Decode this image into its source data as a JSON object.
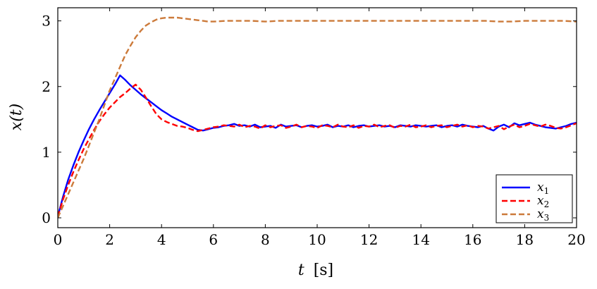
{
  "chart_data": {
    "type": "line",
    "xlabel_var": "t",
    "xlabel_unit": "[s]",
    "ylabel": "x(t)",
    "xlim": [
      0,
      20
    ],
    "ylim": [
      -0.15,
      3.2
    ],
    "xticks": [
      0,
      2,
      4,
      6,
      8,
      10,
      12,
      14,
      16,
      18,
      20
    ],
    "yticks": [
      0,
      1,
      2,
      3
    ],
    "grid": false,
    "legend_position": "bottom-right",
    "series": [
      {
        "name": "x1",
        "color": "#0000ff",
        "style": "solid",
        "x": [
          0,
          0.2,
          0.4,
          0.6,
          0.8,
          1.0,
          1.2,
          1.4,
          1.6,
          1.8,
          2.0,
          2.2,
          2.4,
          2.6,
          2.8,
          3.0,
          3.2,
          3.4,
          3.6,
          3.8,
          4.0,
          4.2,
          4.4,
          4.6,
          4.8,
          5.0,
          5.2,
          5.4,
          5.6,
          5.8,
          6.0,
          6.2,
          6.4,
          6.6,
          6.8,
          7.0,
          7.2,
          7.4,
          7.6,
          7.8,
          8.0,
          8.2,
          8.4,
          8.6,
          8.8,
          9.0,
          9.2,
          9.4,
          9.6,
          9.8,
          10.0,
          10.2,
          10.4,
          10.6,
          10.8,
          11.0,
          11.2,
          11.4,
          11.6,
          11.8,
          12.0,
          12.2,
          12.4,
          12.6,
          12.8,
          13.0,
          13.2,
          13.4,
          13.6,
          13.8,
          14.0,
          14.2,
          14.4,
          14.6,
          14.8,
          15.0,
          15.2,
          15.4,
          15.6,
          15.8,
          16.0,
          16.2,
          16.4,
          16.6,
          16.8,
          17.0,
          17.2,
          17.4,
          17.6,
          17.8,
          18.0,
          18.2,
          18.4,
          18.6,
          18.8,
          19.0,
          19.2,
          19.4,
          19.6,
          19.8,
          20.0
        ],
        "y": [
          0.02,
          0.32,
          0.58,
          0.8,
          1.0,
          1.18,
          1.35,
          1.5,
          1.64,
          1.77,
          1.9,
          2.03,
          2.17,
          2.1,
          2.02,
          1.95,
          1.88,
          1.82,
          1.76,
          1.7,
          1.64,
          1.59,
          1.54,
          1.5,
          1.46,
          1.42,
          1.38,
          1.34,
          1.33,
          1.35,
          1.37,
          1.38,
          1.4,
          1.41,
          1.43,
          1.4,
          1.41,
          1.39,
          1.42,
          1.38,
          1.39,
          1.4,
          1.37,
          1.42,
          1.39,
          1.4,
          1.41,
          1.38,
          1.4,
          1.41,
          1.39,
          1.4,
          1.42,
          1.38,
          1.4,
          1.39,
          1.41,
          1.38,
          1.4,
          1.41,
          1.39,
          1.4,
          1.41,
          1.39,
          1.4,
          1.38,
          1.41,
          1.4,
          1.39,
          1.41,
          1.4,
          1.39,
          1.4,
          1.41,
          1.38,
          1.4,
          1.41,
          1.39,
          1.42,
          1.4,
          1.39,
          1.38,
          1.4,
          1.36,
          1.33,
          1.39,
          1.42,
          1.38,
          1.44,
          1.41,
          1.43,
          1.45,
          1.42,
          1.4,
          1.38,
          1.37,
          1.36,
          1.38,
          1.4,
          1.43,
          1.45
        ]
      },
      {
        "name": "x2",
        "color": "#ff0000",
        "style": "dashed",
        "x": [
          0,
          0.2,
          0.4,
          0.6,
          0.8,
          1.0,
          1.2,
          1.4,
          1.6,
          1.8,
          2.0,
          2.2,
          2.4,
          2.6,
          2.8,
          3.0,
          3.2,
          3.4,
          3.6,
          3.8,
          4.0,
          4.2,
          4.4,
          4.6,
          4.8,
          5.0,
          5.2,
          5.4,
          5.6,
          5.8,
          6.0,
          6.2,
          6.4,
          6.6,
          6.8,
          7.0,
          7.2,
          7.4,
          7.6,
          7.8,
          8.0,
          8.2,
          8.4,
          8.6,
          8.8,
          9.0,
          9.2,
          9.4,
          9.6,
          9.8,
          10.0,
          10.2,
          10.4,
          10.6,
          10.8,
          11.0,
          11.2,
          11.4,
          11.6,
          11.8,
          12.0,
          12.2,
          12.4,
          12.6,
          12.8,
          13.0,
          13.2,
          13.4,
          13.6,
          13.8,
          14.0,
          14.2,
          14.4,
          14.6,
          14.8,
          15.0,
          15.2,
          15.4,
          15.6,
          15.8,
          16.0,
          16.2,
          16.4,
          16.6,
          16.8,
          17.0,
          17.2,
          17.4,
          17.6,
          17.8,
          18.0,
          18.2,
          18.4,
          18.6,
          18.8,
          19.0,
          19.2,
          19.4,
          19.6,
          19.8,
          20.0
        ],
        "y": [
          0.02,
          0.28,
          0.5,
          0.7,
          0.88,
          1.05,
          1.2,
          1.34,
          1.47,
          1.58,
          1.68,
          1.76,
          1.84,
          1.9,
          1.97,
          2.03,
          1.95,
          1.83,
          1.7,
          1.58,
          1.5,
          1.46,
          1.43,
          1.4,
          1.39,
          1.37,
          1.34,
          1.32,
          1.34,
          1.36,
          1.38,
          1.39,
          1.41,
          1.4,
          1.39,
          1.42,
          1.38,
          1.4,
          1.39,
          1.36,
          1.41,
          1.38,
          1.4,
          1.41,
          1.37,
          1.39,
          1.42,
          1.38,
          1.4,
          1.39,
          1.37,
          1.41,
          1.4,
          1.38,
          1.42,
          1.39,
          1.38,
          1.41,
          1.37,
          1.4,
          1.39,
          1.42,
          1.38,
          1.4,
          1.41,
          1.37,
          1.4,
          1.39,
          1.42,
          1.38,
          1.39,
          1.41,
          1.38,
          1.4,
          1.41,
          1.38,
          1.4,
          1.42,
          1.39,
          1.41,
          1.38,
          1.4,
          1.39,
          1.36,
          1.38,
          1.4,
          1.35,
          1.39,
          1.42,
          1.38,
          1.4,
          1.43,
          1.41,
          1.39,
          1.42,
          1.4,
          1.37,
          1.36,
          1.38,
          1.41,
          1.44
        ]
      },
      {
        "name": "x3",
        "color": "#cc7a3a",
        "style": "dashed",
        "x": [
          0,
          0.2,
          0.4,
          0.6,
          0.8,
          1.0,
          1.2,
          1.4,
          1.6,
          1.8,
          2.0,
          2.2,
          2.4,
          2.6,
          2.8,
          3.0,
          3.2,
          3.4,
          3.6,
          3.8,
          4.0,
          4.2,
          4.4,
          4.6,
          4.8,
          5.0,
          5.2,
          5.4,
          5.6,
          5.8,
          6.0,
          6.5,
          7.0,
          7.5,
          8.0,
          8.5,
          9.0,
          9.5,
          10.0,
          10.5,
          11.0,
          11.5,
          12.0,
          12.5,
          13.0,
          13.5,
          14.0,
          14.5,
          15.0,
          15.5,
          16.0,
          16.5,
          17.0,
          17.5,
          18.0,
          18.5,
          19.0,
          19.5,
          20.0
        ],
        "y": [
          0.0,
          0.18,
          0.36,
          0.54,
          0.72,
          0.9,
          1.1,
          1.3,
          1.5,
          1.72,
          1.94,
          2.12,
          2.3,
          2.48,
          2.62,
          2.75,
          2.85,
          2.93,
          2.98,
          3.02,
          3.04,
          3.05,
          3.05,
          3.05,
          3.04,
          3.03,
          3.02,
          3.01,
          3.0,
          2.99,
          2.99,
          3.0,
          3.0,
          3.0,
          2.99,
          3.0,
          3.0,
          3.0,
          3.0,
          3.0,
          3.0,
          3.0,
          3.0,
          3.0,
          3.0,
          3.0,
          3.0,
          3.0,
          3.0,
          3.0,
          3.0,
          3.0,
          2.99,
          2.99,
          3.0,
          3.0,
          3.0,
          3.0,
          2.99
        ]
      }
    ]
  }
}
